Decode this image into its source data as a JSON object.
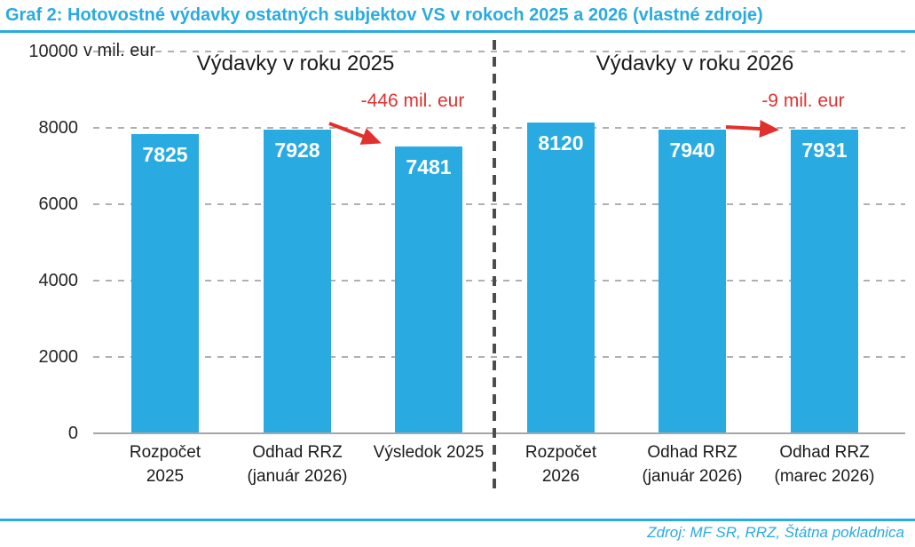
{
  "header": {
    "title": "Graf 2: Hotovostné výdavky ostatných subjektov VS v rokoch 2025 a 2026 (vlastné zdroje)"
  },
  "footer": {
    "source": "Zdroj: MF SR, RRZ, Štátna pokladnica"
  },
  "colors": {
    "accent_cyan": "#29ABE2",
    "annotation_red": "#E0312E",
    "gridline_gray": "#B0B0B0",
    "divider_gray": "#4D4D4D",
    "axis_gray": "#A6A6A6",
    "text_dark": "#1A1A1A",
    "bar_value_text": "#FFFFFF"
  },
  "chart_data": {
    "type": "bar",
    "unit_label": "v mil. eur",
    "ylim": [
      0,
      10000
    ],
    "yticks": [
      0,
      2000,
      4000,
      6000,
      8000,
      10000
    ],
    "grid": "horizontal dashed",
    "bar_color": "#29ABE2",
    "sections": [
      {
        "title": "Výdavky v roku 2025",
        "categories": [
          [
            "Rozpočet",
            "2025"
          ],
          [
            "Odhad RRZ",
            "(január 2026)"
          ],
          [
            "Výsledok 2025"
          ]
        ],
        "values": [
          7825,
          7928,
          7481
        ],
        "annotation": "-446 mil. eur"
      },
      {
        "title": "Výdavky v roku 2026",
        "categories": [
          [
            "Rozpočet",
            "2026"
          ],
          [
            "Odhad RRZ",
            "(január 2026)"
          ],
          [
            "Odhad RRZ",
            "(marec 2026)"
          ]
        ],
        "values": [
          8120,
          7940,
          7931
        ],
        "annotation": "-9 mil. eur"
      }
    ]
  }
}
